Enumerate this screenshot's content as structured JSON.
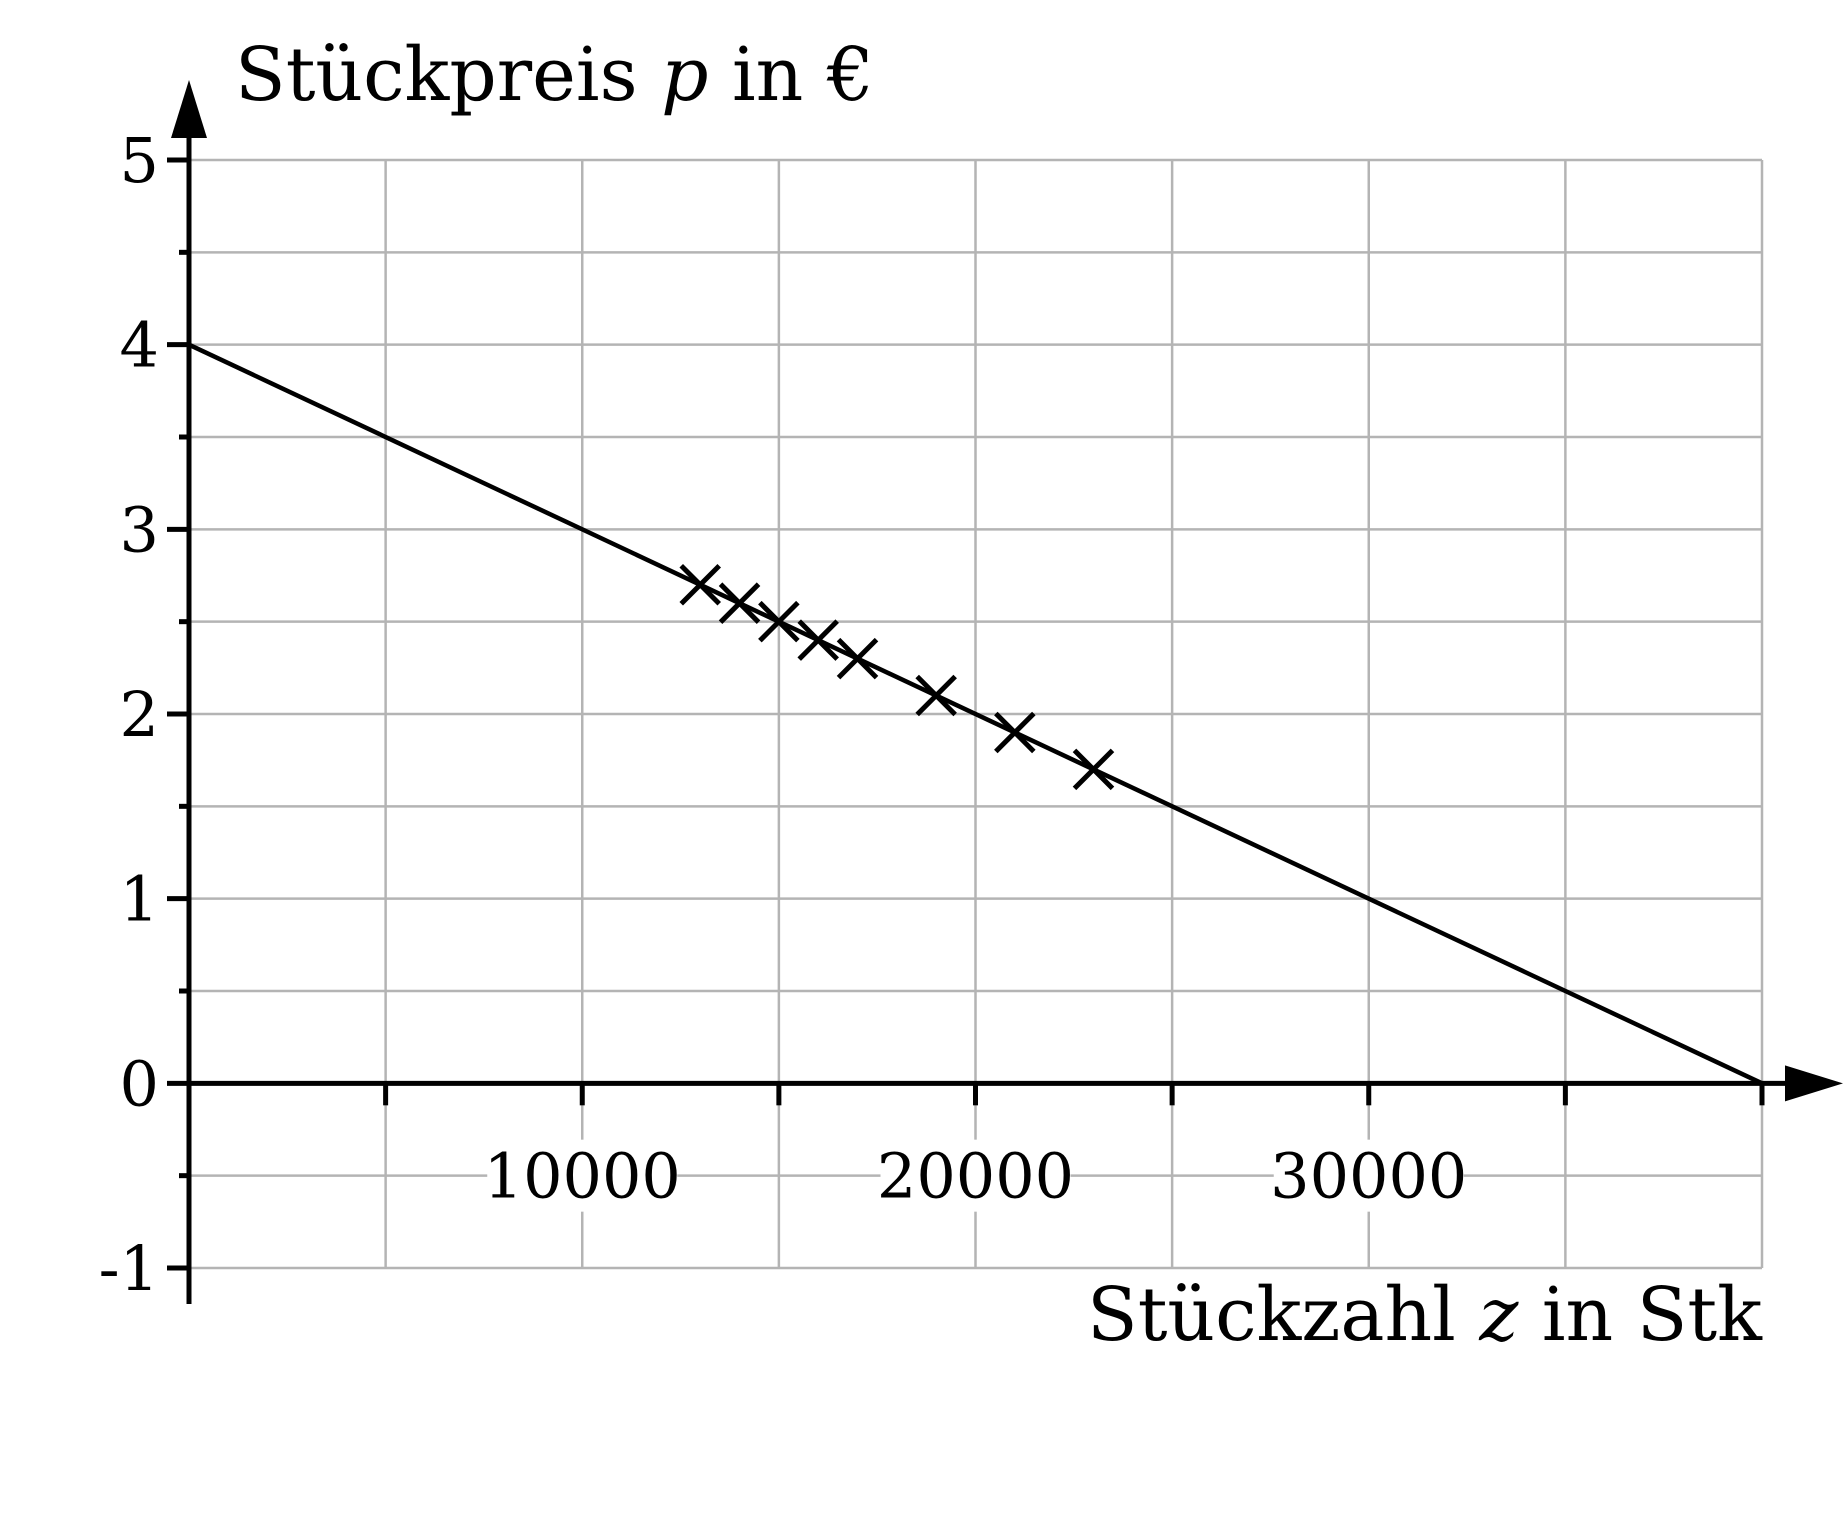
{
  "chart_data": {
    "type": "scatter",
    "title": "",
    "xlabel": {
      "prefix": "Stückzahl ",
      "var": "z",
      "suffix": " in Stk"
    },
    "ylabel": {
      "prefix": "Stückpreis ",
      "var": "p",
      "suffix": " in €"
    },
    "xlim": [
      0,
      40000
    ],
    "ylim": [
      -1,
      5
    ],
    "x_ticks": [
      10000,
      20000,
      30000
    ],
    "x_tick_labels": [
      "10000",
      "20000",
      "30000"
    ],
    "y_ticks": [
      -1,
      0,
      1,
      2,
      3,
      4,
      5
    ],
    "y_tick_labels": [
      "-1",
      "0",
      "1",
      "2",
      "3",
      "4",
      "5"
    ],
    "x_grid_step": 5000,
    "y_grid_step": 0.5,
    "grid": true,
    "points": [
      {
        "x": 13000,
        "y": 2.7
      },
      {
        "x": 14000,
        "y": 2.6
      },
      {
        "x": 15000,
        "y": 2.5
      },
      {
        "x": 16000,
        "y": 2.4
      },
      {
        "x": 17000,
        "y": 2.3
      },
      {
        "x": 19000,
        "y": 2.1
      },
      {
        "x": 21000,
        "y": 1.9
      },
      {
        "x": 23000,
        "y": 1.7
      }
    ],
    "trend_line": {
      "x": [
        0,
        40000
      ],
      "y": [
        4,
        0
      ]
    },
    "marker": "cross"
  }
}
